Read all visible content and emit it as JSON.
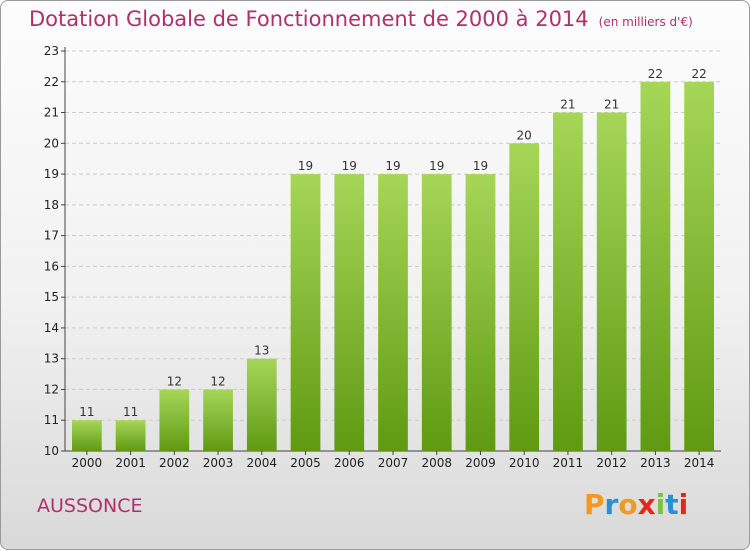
{
  "header": {
    "title": "Dotation Globale de Fonctionnement de 2000 à 2014",
    "unit": "(en milliers d'€)"
  },
  "footer": {
    "place": "AUSSONCE",
    "brand": "Proxiti"
  },
  "colors": {
    "title": "#b0306a",
    "bar_top": "#a6d658",
    "bar_bottom": "#5f9a12",
    "grid": "#cccccc"
  },
  "chart_data": {
    "type": "bar",
    "title": "Dotation Globale de Fonctionnement de 2000 à 2014",
    "subtitle": "(en milliers d'€)",
    "xlabel": "",
    "ylabel": "",
    "categories": [
      "2000",
      "2001",
      "2002",
      "2003",
      "2004",
      "2005",
      "2006",
      "2007",
      "2008",
      "2009",
      "2010",
      "2011",
      "2012",
      "2013",
      "2014"
    ],
    "values": [
      11,
      11,
      12,
      12,
      13,
      19,
      19,
      19,
      19,
      19,
      20,
      21,
      21,
      22,
      22
    ],
    "ylim": [
      10,
      23
    ],
    "yticks": [
      10,
      11,
      12,
      13,
      14,
      15,
      16,
      17,
      18,
      19,
      20,
      21,
      22,
      23
    ],
    "grid": "horizontal dashed",
    "legend": "none"
  }
}
